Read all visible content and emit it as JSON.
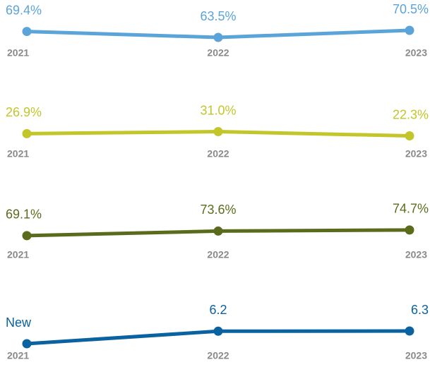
{
  "chart_data": [
    {
      "type": "line",
      "categories": [
        "2021",
        "2022",
        "2023"
      ],
      "values": [
        69.4,
        63.5,
        70.5
      ],
      "value_labels": [
        "69.4%",
        "63.5%",
        "70.5%"
      ],
      "color": "#5ba4d9",
      "ylim": [
        60,
        74
      ]
    },
    {
      "type": "line",
      "categories": [
        "2021",
        "2022",
        "2023"
      ],
      "values": [
        26.9,
        31.0,
        22.3
      ],
      "value_labels": [
        "26.9%",
        "31.0%",
        "22.3%"
      ],
      "color": "#c2c62b",
      "ylim": [
        10,
        39
      ]
    },
    {
      "type": "line",
      "categories": [
        "2021",
        "2022",
        "2023"
      ],
      "values": [
        69.1,
        73.6,
        74.7
      ],
      "value_labels": [
        "69.1%",
        "73.6%",
        "74.7%"
      ],
      "color": "#5a6c1b",
      "ylim": [
        62,
        76
      ]
    },
    {
      "type": "line",
      "categories": [
        "2021",
        "2022",
        "2023"
      ],
      "values": [
        0,
        6.2,
        6.3
      ],
      "value_labels": [
        "New",
        "6.2",
        "6.3"
      ],
      "color": "#0a62a0",
      "ylim": [
        0,
        7
      ]
    }
  ]
}
